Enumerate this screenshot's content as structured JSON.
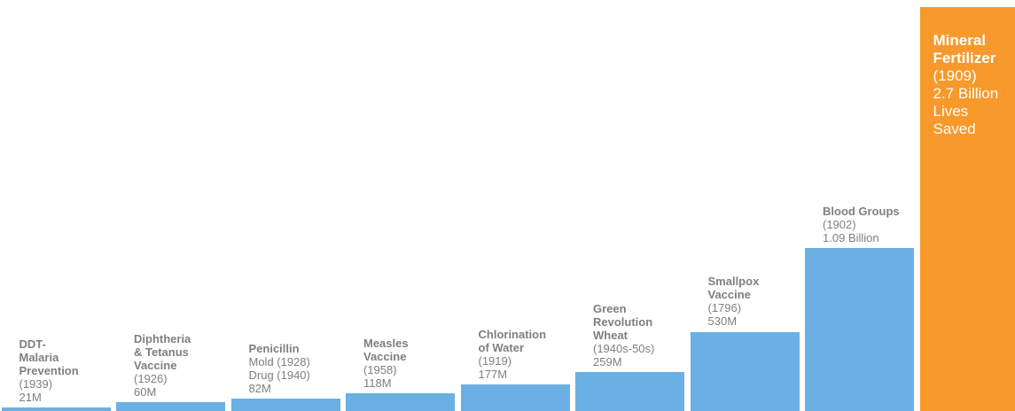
{
  "chart_data": {
    "type": "bar",
    "categories": [
      "DDT-Malaria Prevention",
      "Diphtheria & Tetanus Vaccine",
      "Penicillin",
      "Measles Vaccine",
      "Chlorination of Water",
      "Green Revolution Wheat",
      "Smallpox Vaccine",
      "Blood Groups",
      "Mineral Fertilizer"
    ],
    "values_millions": [
      21,
      60,
      82,
      118,
      177,
      259,
      530,
      1090,
      2700
    ],
    "labels": [
      {
        "name_lines": [
          "DDT-",
          "Malaria",
          "Prevention"
        ],
        "detail_lines": [
          "(1939)",
          "21M"
        ]
      },
      {
        "name_lines": [
          "Diphtheria",
          "& Tetanus",
          "Vaccine"
        ],
        "detail_lines": [
          "(1926)",
          "60M"
        ]
      },
      {
        "name_lines": [
          "Penicillin"
        ],
        "detail_lines": [
          "Mold (1928)",
          "Drug (1940)",
          "82M"
        ]
      },
      {
        "name_lines": [
          "Measles",
          "Vaccine"
        ],
        "detail_lines": [
          "(1958)",
          "118M"
        ]
      },
      {
        "name_lines": [
          "Chlorination",
          "of Water"
        ],
        "detail_lines": [
          "(1919)",
          "177M"
        ]
      },
      {
        "name_lines": [
          "Green",
          "Revolution",
          "Wheat"
        ],
        "detail_lines": [
          "(1940s-50s)",
          "259M"
        ]
      },
      {
        "name_lines": [
          "Smallpox",
          "Vaccine"
        ],
        "detail_lines": [
          "(1796)",
          "530M"
        ]
      },
      {
        "name_lines": [
          "Blood Groups"
        ],
        "detail_lines": [
          "(1902)",
          "1.09 Billion"
        ]
      },
      {
        "name_lines": [
          "Mineral",
          "Fertilizer"
        ],
        "detail_lines": [
          "(1909)",
          "2.7 Billion",
          "Lives",
          "Saved"
        ]
      }
    ],
    "highlight_index": 8,
    "ylim_millions": [
      0,
      2700
    ],
    "grid": false,
    "legend": "none",
    "colors": {
      "bar": "#6ab0e4",
      "highlight": "#f7992b",
      "label_text": "#7f7f7f",
      "highlight_text": "#ffffff"
    }
  }
}
